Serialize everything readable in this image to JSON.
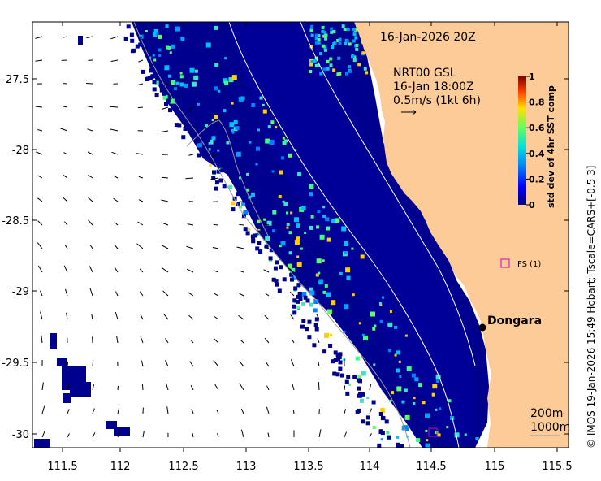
{
  "map": {
    "timestamp": "16-Jan-2026 20Z",
    "current_source": "NRT00 GSL",
    "current_time": "16-Jan 18:00Z",
    "vector_scale": "0.5m/s (1kt 6h)",
    "colorbar": {
      "title": "std dev of 4hr SST comp",
      "ticks": [
        "0",
        "0.2",
        "0.4",
        "0.6",
        "0.8",
        "1"
      ],
      "colors": [
        "#00007f",
        "#0040ff",
        "#00c0ff",
        "#40ffbf",
        "#c0ff40",
        "#ffbf00",
        "#ff4000",
        "#7f0000"
      ]
    },
    "x_ticks": [
      "111.5",
      "112",
      "112.5",
      "113",
      "113.5",
      "114",
      "114.5",
      "115",
      "115.5"
    ],
    "y_ticks": [
      "-27.5",
      "-28",
      "-28.5",
      "-29",
      "-29.5",
      "-30"
    ],
    "places": {
      "dongara": "Dongara",
      "fs": "FS (1)"
    },
    "contour_legend": {
      "c200": "200m",
      "c1000": "1000m"
    },
    "credit": "© IMOS 19-Jan-2026 15:49 Hobart; Tscale=CARS+[-0.5 3]",
    "colors": {
      "land": "#fccb98",
      "ocean_bg": "#ffffff",
      "sst_dark": "#00008f",
      "marker": "#cc00cc"
    }
  }
}
